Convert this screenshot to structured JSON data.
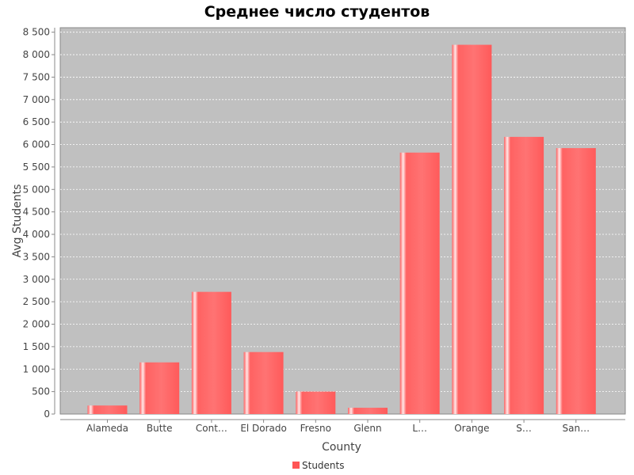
{
  "chart_data": {
    "type": "bar",
    "title": "Среднее число студентов",
    "xlabel": "County",
    "ylabel": "Avg Students",
    "categories": [
      "Alameda",
      "Butte",
      "Cont…",
      "El Dorado",
      "Fresno",
      "Glenn",
      "L…",
      "Orange",
      "S…",
      "San…"
    ],
    "series": [
      {
        "name": "Students",
        "color": "#ff5555",
        "values": [
          190,
          1150,
          2720,
          1380,
          500,
          140,
          5820,
          8220,
          6170,
          5920
        ]
      }
    ],
    "ylim": [
      0,
      8600
    ],
    "yticks": [
      0,
      500,
      1000,
      1500,
      2000,
      2500,
      3000,
      3500,
      4000,
      4500,
      5000,
      5500,
      6000,
      6500,
      7000,
      7500,
      8000,
      8500
    ],
    "ytick_labels": [
      "0",
      "500",
      "1 000",
      "1 500",
      "2 000",
      "2 500",
      "3 000",
      "3 500",
      "4 000",
      "4 500",
      "5 000",
      "5 500",
      "6 000",
      "6 500",
      "7 000",
      "7 500",
      "8 000",
      "8 500"
    ],
    "grid": true,
    "legend_position": "bottom-center",
    "plot_background": "#c0c0c0"
  }
}
